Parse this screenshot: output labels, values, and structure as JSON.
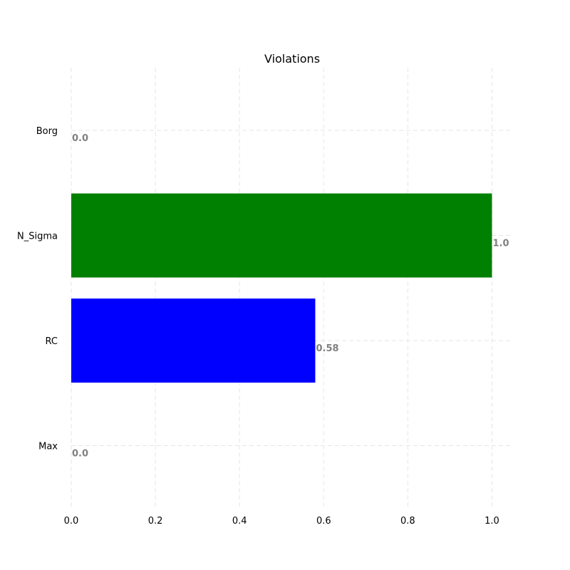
{
  "chart_data": {
    "type": "bar",
    "orientation": "horizontal",
    "title": "Violations",
    "xlabel": "",
    "ylabel": "",
    "categories": [
      "Borg",
      "N_Sigma",
      "RC",
      "Max"
    ],
    "values": [
      0.0,
      1.0,
      0.58,
      0.0
    ],
    "value_labels": [
      "0.0",
      "1.0",
      "0.58",
      "0.0"
    ],
    "bar_colors": [
      "#0000ff",
      "#008000",
      "#0000ff",
      "#0000ff"
    ],
    "xlim": [
      0,
      1.05
    ],
    "xticks": [
      0.0,
      0.2,
      0.4,
      0.6,
      0.8,
      1.0
    ],
    "xtick_labels": [
      "0.0",
      "0.2",
      "0.4",
      "0.6",
      "0.8",
      "1.0"
    ],
    "grid": true,
    "legend": "none"
  }
}
